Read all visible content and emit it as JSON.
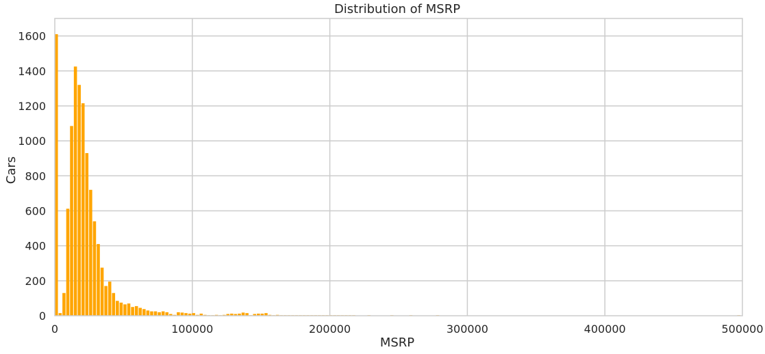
{
  "chart_data": {
    "type": "bar",
    "title": "Distribution of MSRP",
    "xlabel": "MSRP",
    "ylabel": "Cars",
    "xlim": [
      0,
      500000
    ],
    "ylim": [
      0,
      1700
    ],
    "x_ticks": [
      0,
      100000,
      200000,
      300000,
      400000,
      500000
    ],
    "y_ticks": [
      0,
      200,
      400,
      600,
      800,
      1000,
      1200,
      1400,
      1600
    ],
    "grid": true,
    "bar_color": "#FFA500",
    "bins": {
      "x_start": 0,
      "x_end": 499000,
      "values": [
        1610,
        15,
        130,
        612,
        1085,
        1425,
        1320,
        1215,
        930,
        720,
        540,
        410,
        275,
        170,
        195,
        130,
        85,
        75,
        65,
        70,
        50,
        55,
        45,
        38,
        30,
        25,
        25,
        20,
        25,
        20,
        10,
        5,
        20,
        18,
        15,
        12,
        15,
        5,
        12,
        5,
        3,
        2,
        5,
        3,
        5,
        10,
        12,
        10,
        12,
        18,
        15,
        3,
        10,
        12,
        12,
        15,
        5,
        3,
        5,
        2,
        2,
        1,
        2,
        1,
        1,
        1,
        1,
        1,
        1,
        1,
        2,
        2,
        1,
        1,
        1,
        1,
        1,
        1,
        1,
        0,
        0,
        0,
        1,
        0,
        0,
        0,
        0,
        0,
        1,
        0,
        0,
        0,
        0,
        1,
        0,
        0,
        0,
        0,
        0,
        0,
        1,
        0,
        0,
        0,
        0,
        0,
        0,
        0,
        0,
        0,
        0,
        0,
        0,
        0,
        0,
        0,
        0,
        0,
        0,
        0,
        0,
        0,
        0,
        0,
        0,
        0,
        0,
        0,
        0,
        0,
        0,
        0,
        0,
        0,
        0,
        0,
        0,
        0,
        0,
        0,
        0,
        0,
        0,
        0,
        0,
        0,
        0,
        0,
        0,
        0,
        0,
        0,
        0,
        0,
        0,
        0,
        0,
        0,
        0,
        0,
        0,
        0,
        0,
        0,
        0,
        0,
        0,
        0,
        0,
        0,
        0,
        0,
        0,
        0,
        0,
        0,
        0,
        0,
        0,
        1
      ]
    }
  }
}
